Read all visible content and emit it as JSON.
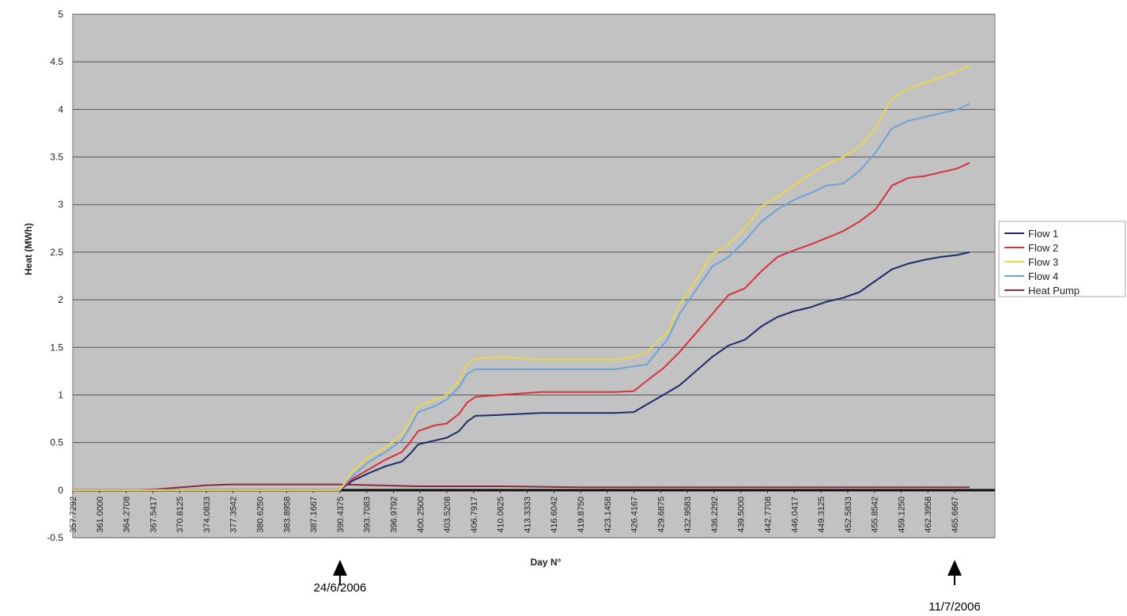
{
  "chart_data": {
    "type": "line",
    "title": "",
    "xlabel": "Day N°",
    "ylabel": "Heat (MWh)",
    "xlim": [
      357.7292,
      470.6
    ],
    "ylim": [
      -0.5,
      5
    ],
    "yticks": [
      "-0.5",
      "0",
      "0.5",
      "1",
      "1.5",
      "2",
      "2.5",
      "3",
      "3.5",
      "4",
      "4.5",
      "5"
    ],
    "xticks": [
      "357.7292",
      "361.0000",
      "364.2708",
      "367.5417",
      "370.8125",
      "374.0833",
      "377.3542",
      "380.6250",
      "383.8958",
      "387.1667",
      "390.4375",
      "393.7083",
      "396.9792",
      "400.2500",
      "403.5208",
      "406.7917",
      "410.0625",
      "413.3333",
      "416.6042",
      "419.8750",
      "423.1458",
      "426.4167",
      "429.6875",
      "432.9583",
      "436.2292",
      "439.5000",
      "442.7708",
      "446.0417",
      "449.3125",
      "452.5833",
      "455.8542",
      "459.1250",
      "462.3958",
      "465.6667"
    ],
    "grid": "horizontal",
    "legend": "right",
    "plot_bg": "#c2c2c2",
    "series": [
      {
        "name": "Flow 1",
        "color": "#1f2a6b",
        "x": [
          357.73,
          390.4,
          392,
          394,
          396,
          398,
          399,
          400,
          402,
          403.5,
          405,
          406,
          407,
          410,
          415,
          420,
          424,
          426.4,
          428,
          430,
          432,
          434,
          436,
          438,
          440,
          442,
          444,
          446,
          448,
          450,
          452,
          454,
          456,
          458,
          460,
          462,
          464,
          466,
          467.5
        ],
        "y": [
          0,
          0,
          0.1,
          0.18,
          0.25,
          0.3,
          0.38,
          0.48,
          0.52,
          0.55,
          0.62,
          0.72,
          0.78,
          0.79,
          0.81,
          0.81,
          0.81,
          0.82,
          0.9,
          1.0,
          1.1,
          1.25,
          1.4,
          1.52,
          1.58,
          1.72,
          1.82,
          1.88,
          1.92,
          1.98,
          2.02,
          2.08,
          2.2,
          2.32,
          2.38,
          2.42,
          2.45,
          2.47,
          2.5
        ]
      },
      {
        "name": "Flow 2",
        "color": "#d8323c",
        "x": [
          357.73,
          390.4,
          392,
          394,
          396,
          398,
          399,
          400,
          402,
          403.5,
          405,
          406,
          407,
          410,
          415,
          420,
          424,
          426.4,
          428,
          430,
          432,
          434,
          436,
          438,
          440,
          442,
          444,
          446,
          448,
          450,
          452,
          454,
          456,
          458,
          460,
          462,
          464,
          466,
          467.5
        ],
        "y": [
          0,
          0,
          0.12,
          0.22,
          0.32,
          0.4,
          0.5,
          0.62,
          0.68,
          0.7,
          0.8,
          0.92,
          0.98,
          1.0,
          1.03,
          1.03,
          1.03,
          1.04,
          1.15,
          1.28,
          1.45,
          1.65,
          1.85,
          2.05,
          2.12,
          2.3,
          2.45,
          2.52,
          2.58,
          2.65,
          2.72,
          2.82,
          2.95,
          3.2,
          3.28,
          3.3,
          3.34,
          3.38,
          3.44
        ]
      },
      {
        "name": "Flow 3",
        "color": "#e8d84a",
        "x": [
          357.73,
          390.4,
          392,
          394,
          396,
          398,
          399,
          400,
          402,
          403.5,
          405,
          406,
          407,
          410,
          415,
          420,
          424,
          426.4,
          428,
          429.5,
          430.5,
          432,
          434,
          436,
          438,
          440,
          442,
          444,
          446,
          448,
          450,
          452,
          454,
          456,
          458,
          460,
          462,
          464,
          466,
          467.5
        ],
        "y": [
          0,
          0,
          0.2,
          0.35,
          0.45,
          0.58,
          0.72,
          0.88,
          0.95,
          1.0,
          1.15,
          1.32,
          1.38,
          1.4,
          1.37,
          1.37,
          1.37,
          1.4,
          1.45,
          1.58,
          1.65,
          1.95,
          2.2,
          2.48,
          2.58,
          2.75,
          2.98,
          3.08,
          3.2,
          3.32,
          3.42,
          3.5,
          3.6,
          3.8,
          4.12,
          4.22,
          4.28,
          4.34,
          4.4,
          4.46
        ]
      },
      {
        "name": "Flow 4",
        "color": "#6fa3d6",
        "x": [
          357.73,
          390.4,
          392,
          394,
          396,
          398,
          399,
          400,
          402,
          403.5,
          405,
          406,
          407,
          410,
          415,
          420,
          424,
          426.4,
          428,
          429.5,
          430.5,
          432,
          434,
          436,
          438,
          440,
          442,
          444,
          446,
          448,
          450,
          452,
          454,
          456,
          458,
          460,
          462,
          464,
          466,
          467.5
        ],
        "y": [
          0,
          0,
          0.15,
          0.3,
          0.4,
          0.52,
          0.66,
          0.82,
          0.88,
          0.95,
          1.08,
          1.22,
          1.27,
          1.27,
          1.27,
          1.27,
          1.27,
          1.3,
          1.32,
          1.48,
          1.58,
          1.85,
          2.1,
          2.35,
          2.45,
          2.62,
          2.82,
          2.95,
          3.05,
          3.12,
          3.2,
          3.22,
          3.35,
          3.55,
          3.8,
          3.88,
          3.92,
          3.96,
          4.0,
          4.06
        ]
      },
      {
        "name": "Heat Pump",
        "color": "#8a2a3a",
        "x": [
          357.73,
          365,
          368,
          371,
          374,
          377,
          380,
          385,
          390.4,
          400,
          410,
          420,
          430,
          440,
          450,
          460,
          467.5
        ],
        "y": [
          0,
          0,
          0.01,
          0.03,
          0.05,
          0.06,
          0.06,
          0.06,
          0.06,
          0.04,
          0.04,
          0.03,
          0.03,
          0.03,
          0.03,
          0.03,
          0.03
        ]
      }
    ],
    "annotations": [
      {
        "label": "24/6/2006",
        "x": 390.4375
      },
      {
        "label": "11/7/2006",
        "x": 465.6667
      }
    ]
  }
}
